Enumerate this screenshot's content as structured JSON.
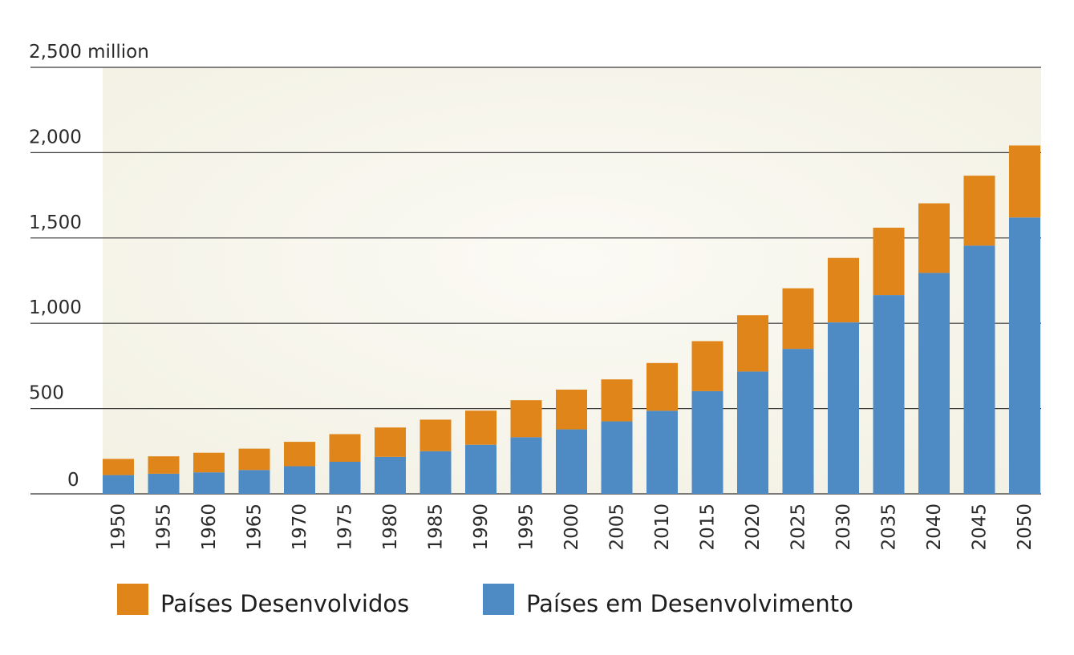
{
  "chart_data": {
    "type": "bar",
    "stacked": true,
    "categories": [
      "1950",
      "1955",
      "1960",
      "1965",
      "1970",
      "1975",
      "1980",
      "1985",
      "1990",
      "1995",
      "2000",
      "2005",
      "2010",
      "2015",
      "2020",
      "2025",
      "2030",
      "2035",
      "2040",
      "2045",
      "2050"
    ],
    "series": [
      {
        "name": "Países em Desenvolvimento",
        "color": "#4e8bc4",
        "values": [
          110,
          118,
          126,
          140,
          162,
          188,
          217,
          250,
          288,
          332,
          378,
          425,
          487,
          602,
          717,
          850,
          1005,
          1165,
          1295,
          1455,
          1620
        ]
      },
      {
        "name": "Países Desenvolvidos",
        "color": "#e08519",
        "values": [
          95,
          102,
          115,
          125,
          143,
          162,
          172,
          185,
          200,
          217,
          233,
          246,
          280,
          293,
          330,
          355,
          378,
          395,
          408,
          410,
          422
        ]
      }
    ],
    "y_ticks": [
      {
        "value": 0,
        "label": "0"
      },
      {
        "value": 500,
        "label": "500"
      },
      {
        "value": 1000,
        "label": "1,000"
      },
      {
        "value": 1500,
        "label": "1,500"
      },
      {
        "value": 2000,
        "label": "2,000"
      },
      {
        "value": 2500,
        "label": "2,500 million"
      }
    ],
    "ylim": [
      0,
      2500
    ],
    "grid": true,
    "title": "",
    "xlabel": "",
    "ylabel": "",
    "legend": {
      "position": "bottom",
      "entries": [
        {
          "name": "Países Desenvolvidos",
          "color": "#e08519"
        },
        {
          "name": "Países em Desenvolvimento",
          "color": "#4e8bc4"
        }
      ]
    },
    "plot_background": "#f7f5ec"
  }
}
